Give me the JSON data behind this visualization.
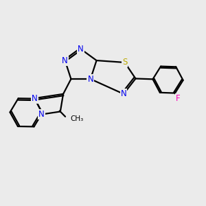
{
  "bg_color": "#ebebeb",
  "N_color": "#0000ee",
  "S_color": "#bbaa00",
  "F_color": "#ff00bb",
  "C_color": "#000000",
  "lw": 1.6,
  "fs": 8.5,
  "xlim": [
    0,
    10
  ],
  "ylim": [
    0,
    10
  ]
}
